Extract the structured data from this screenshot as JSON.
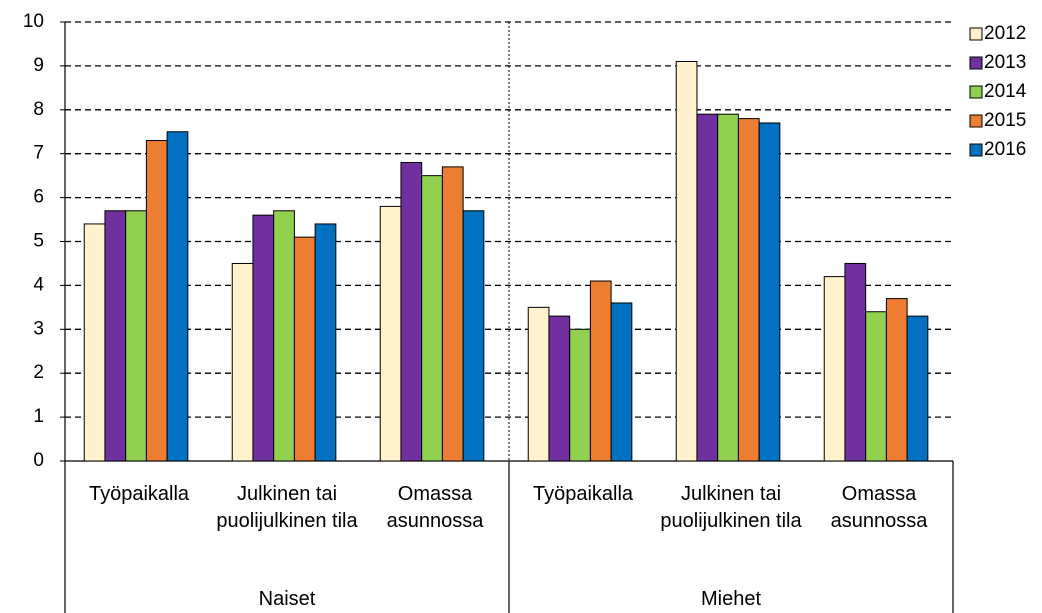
{
  "chart_data": {
    "type": "bar",
    "categories": [
      "Työpaikalla",
      "Julkinen tai puolijulkinen tila",
      "Omassa asunnossa",
      "Työpaikalla",
      "Julkinen tai puolijulkinen tila",
      "Omassa asunnossa"
    ],
    "groups": [
      "Naiset",
      "Miehet"
    ],
    "series": [
      {
        "name": "2012",
        "color": "#fff2cc",
        "values": [
          5.4,
          4.5,
          5.8,
          3.5,
          9.1,
          4.2
        ]
      },
      {
        "name": "2013",
        "color": "#7030a0",
        "values": [
          5.7,
          5.6,
          6.8,
          3.3,
          7.9,
          4.5
        ]
      },
      {
        "name": "2014",
        "color": "#92d050",
        "values": [
          5.7,
          5.7,
          6.5,
          3.0,
          7.9,
          3.4
        ]
      },
      {
        "name": "2015",
        "color": "#ed7d31",
        "values": [
          7.3,
          5.1,
          6.7,
          4.1,
          7.8,
          3.7
        ]
      },
      {
        "name": "2016",
        "color": "#0070c0",
        "values": [
          7.5,
          5.4,
          5.7,
          3.6,
          7.7,
          3.3
        ]
      }
    ],
    "ylim": [
      0,
      10
    ],
    "yticks": [
      0,
      1,
      2,
      3,
      4,
      5,
      6,
      7,
      8,
      9,
      10
    ],
    "grid": true,
    "legend": "right"
  }
}
